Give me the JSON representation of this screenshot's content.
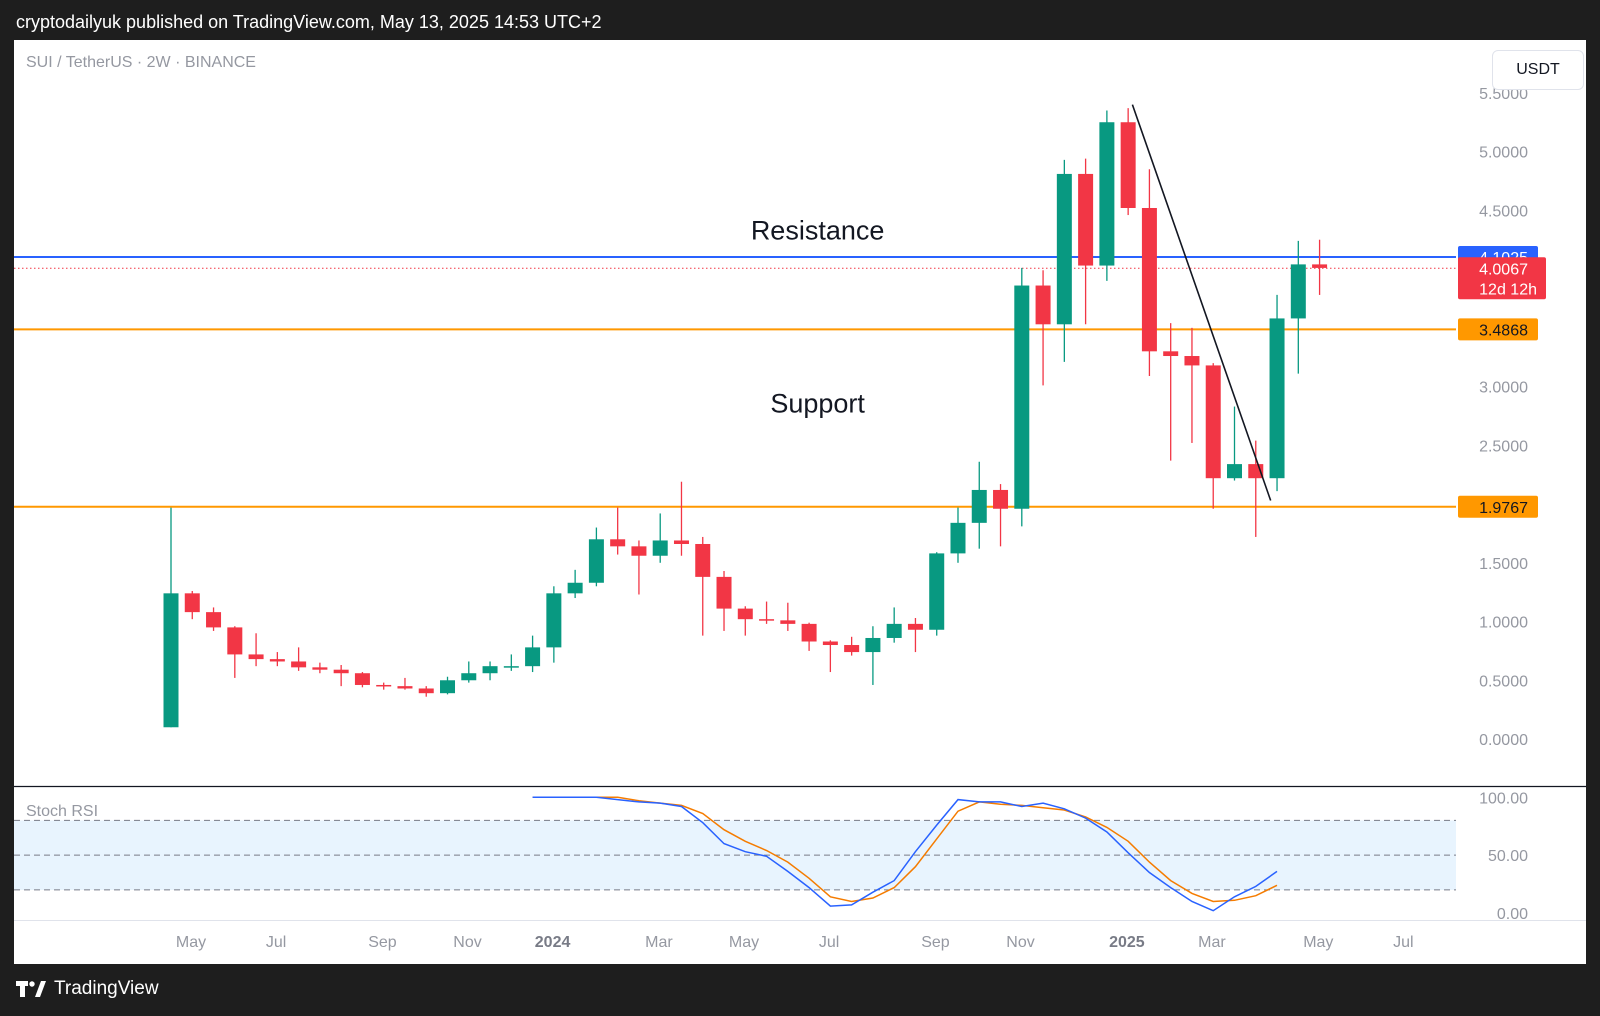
{
  "header": {
    "published": "cryptodailyuk published on TradingView.com, May 13, 2025 14:53 UTC+2"
  },
  "footer": {
    "brand": "TradingView"
  },
  "chart_data": [
    {
      "type": "candlestick",
      "title": "SUI / TetherUS · 2W · BINANCE",
      "currency_button": "USDT",
      "ylim": [
        -0.4,
        5.95
      ],
      "y_ticks": [
        "5.5000",
        "5.0000",
        "4.5000",
        "4.0000",
        "3.5000",
        "3.0000",
        "2.5000",
        "2.0000",
        "1.5000",
        "1.0000",
        "0.5000",
        "0.0000"
      ],
      "x_ticks": [
        {
          "label": "May",
          "i": 0
        },
        {
          "label": "Jul",
          "i": 4
        },
        {
          "label": "Sep",
          "i": 9
        },
        {
          "label": "Nov",
          "i": 13
        },
        {
          "label": "2024",
          "i": 17,
          "bold": true
        },
        {
          "label": "Mar",
          "i": 22
        },
        {
          "label": "May",
          "i": 26
        },
        {
          "label": "Jul",
          "i": 30
        },
        {
          "label": "Sep",
          "i": 35
        },
        {
          "label": "Nov",
          "i": 39
        },
        {
          "label": "2025",
          "i": 44,
          "bold": true
        },
        {
          "label": "Mar",
          "i": 48
        },
        {
          "label": "May",
          "i": 53
        },
        {
          "label": "Jul",
          "i": 57
        }
      ],
      "candles": [
        {
          "o": 0.1,
          "h": 1.97,
          "l": 0.1,
          "c": 1.24
        },
        {
          "o": 1.24,
          "h": 1.26,
          "l": 1.02,
          "c": 1.08
        },
        {
          "o": 1.08,
          "h": 1.12,
          "l": 0.92,
          "c": 0.95
        },
        {
          "o": 0.95,
          "h": 0.96,
          "l": 0.52,
          "c": 0.72
        },
        {
          "o": 0.72,
          "h": 0.9,
          "l": 0.62,
          "c": 0.68
        },
        {
          "o": 0.68,
          "h": 0.74,
          "l": 0.62,
          "c": 0.66
        },
        {
          "o": 0.66,
          "h": 0.78,
          "l": 0.58,
          "c": 0.61
        },
        {
          "o": 0.61,
          "h": 0.65,
          "l": 0.56,
          "c": 0.59
        },
        {
          "o": 0.59,
          "h": 0.63,
          "l": 0.45,
          "c": 0.56
        },
        {
          "o": 0.56,
          "h": 0.57,
          "l": 0.44,
          "c": 0.46
        },
        {
          "o": 0.46,
          "h": 0.48,
          "l": 0.42,
          "c": 0.45
        },
        {
          "o": 0.45,
          "h": 0.52,
          "l": 0.42,
          "c": 0.43
        },
        {
          "o": 0.43,
          "h": 0.45,
          "l": 0.36,
          "c": 0.39
        },
        {
          "o": 0.39,
          "h": 0.53,
          "l": 0.38,
          "c": 0.5
        },
        {
          "o": 0.5,
          "h": 0.66,
          "l": 0.48,
          "c": 0.56
        },
        {
          "o": 0.56,
          "h": 0.66,
          "l": 0.5,
          "c": 0.62
        },
        {
          "o": 0.62,
          "h": 0.72,
          "l": 0.58,
          "c": 0.62
        },
        {
          "o": 0.62,
          "h": 0.88,
          "l": 0.57,
          "c": 0.78
        },
        {
          "o": 0.78,
          "h": 1.3,
          "l": 0.65,
          "c": 1.24
        },
        {
          "o": 1.24,
          "h": 1.44,
          "l": 1.2,
          "c": 1.33
        },
        {
          "o": 1.33,
          "h": 1.8,
          "l": 1.3,
          "c": 1.7
        },
        {
          "o": 1.7,
          "h": 1.97,
          "l": 1.57,
          "c": 1.64
        },
        {
          "o": 1.64,
          "h": 1.69,
          "l": 1.23,
          "c": 1.56
        },
        {
          "o": 1.56,
          "h": 1.92,
          "l": 1.5,
          "c": 1.69
        },
        {
          "o": 1.69,
          "h": 2.19,
          "l": 1.56,
          "c": 1.66
        },
        {
          "o": 1.66,
          "h": 1.72,
          "l": 0.88,
          "c": 1.38
        },
        {
          "o": 1.38,
          "h": 1.43,
          "l": 0.92,
          "c": 1.11
        },
        {
          "o": 1.11,
          "h": 1.13,
          "l": 0.88,
          "c": 1.02
        },
        {
          "o": 1.02,
          "h": 1.17,
          "l": 0.98,
          "c": 1.01
        },
        {
          "o": 1.01,
          "h": 1.16,
          "l": 0.92,
          "c": 0.98
        },
        {
          "o": 0.98,
          "h": 0.99,
          "l": 0.75,
          "c": 0.83
        },
        {
          "o": 0.83,
          "h": 0.84,
          "l": 0.57,
          "c": 0.8
        },
        {
          "o": 0.8,
          "h": 0.87,
          "l": 0.71,
          "c": 0.74
        },
        {
          "o": 0.74,
          "h": 0.96,
          "l": 0.46,
          "c": 0.86
        },
        {
          "o": 0.86,
          "h": 1.12,
          "l": 0.82,
          "c": 0.98
        },
        {
          "o": 0.98,
          "h": 1.03,
          "l": 0.74,
          "c": 0.93
        },
        {
          "o": 0.93,
          "h": 1.59,
          "l": 0.88,
          "c": 1.58
        },
        {
          "o": 1.58,
          "h": 1.97,
          "l": 1.5,
          "c": 1.84
        },
        {
          "o": 1.84,
          "h": 2.36,
          "l": 1.62,
          "c": 2.12
        },
        {
          "o": 2.12,
          "h": 2.17,
          "l": 1.64,
          "c": 1.96
        },
        {
          "o": 1.96,
          "h": 4.01,
          "l": 1.81,
          "c": 3.86
        },
        {
          "o": 3.86,
          "h": 3.99,
          "l": 3.01,
          "c": 3.53
        },
        {
          "o": 3.53,
          "h": 4.93,
          "l": 3.21,
          "c": 4.81
        },
        {
          "o": 4.81,
          "h": 4.94,
          "l": 3.53,
          "c": 4.03
        },
        {
          "o": 4.03,
          "h": 5.35,
          "l": 3.9,
          "c": 5.25
        },
        {
          "o": 5.25,
          "h": 5.37,
          "l": 4.46,
          "c": 4.52
        },
        {
          "o": 4.52,
          "h": 4.85,
          "l": 3.09,
          "c": 3.3
        },
        {
          "o": 3.3,
          "h": 3.54,
          "l": 2.37,
          "c": 3.26
        },
        {
          "o": 3.26,
          "h": 3.5,
          "l": 2.52,
          "c": 3.18
        },
        {
          "o": 3.18,
          "h": 3.2,
          "l": 1.96,
          "c": 2.22
        },
        {
          "o": 2.22,
          "h": 2.83,
          "l": 2.2,
          "c": 2.34
        },
        {
          "o": 2.34,
          "h": 2.54,
          "l": 1.72,
          "c": 2.22
        },
        {
          "o": 2.22,
          "h": 3.78,
          "l": 2.11,
          "c": 3.58
        },
        {
          "o": 3.58,
          "h": 4.24,
          "l": 3.11,
          "c": 4.04
        },
        {
          "o": 4.04,
          "h": 4.25,
          "l": 3.78,
          "c": 4.01
        }
      ],
      "levels": [
        {
          "value": 4.1025,
          "label": "4.1025",
          "color": "#2962ff"
        },
        {
          "value": 3.4868,
          "label": "3.4868",
          "color": "#ff9800"
        },
        {
          "value": 1.9767,
          "label": "1.9767",
          "color": "#ff9800"
        }
      ],
      "last_price": {
        "value": 4.0067,
        "label": "4.0067",
        "countdown": "12d 12h",
        "color": "#f23645"
      },
      "trendline": {
        "from": {
          "i": 45.2,
          "v": 5.4
        },
        "to": {
          "i": 51.7,
          "v": 2.03
        }
      },
      "annotations": [
        {
          "text": "Resistance",
          "i": 30.4,
          "v": 4.25
        },
        {
          "text": "Support",
          "i": 30.4,
          "v": 2.78
        }
      ],
      "colors": {
        "up": "#089981",
        "down": "#f23645"
      }
    },
    {
      "type": "line",
      "title": "Stoch RSI",
      "ylim": [
        -6,
        108
      ],
      "y_ticks": [
        "100.00",
        "50.00",
        "0.00"
      ],
      "band": {
        "upper": 80,
        "middle": 50,
        "lower": 20
      },
      "series": [
        {
          "color": "#2962ff",
          "start_i": 17,
          "values": [
            100,
            100,
            100,
            100,
            98,
            96,
            95,
            92,
            78,
            60,
            53,
            49,
            36,
            22,
            6,
            7,
            18,
            28,
            53,
            76,
            98,
            96,
            96,
            92,
            95,
            90,
            82,
            70,
            52,
            35,
            22,
            10,
            2,
            14,
            23,
            36
          ]
        },
        {
          "color": "#f57c00",
          "start_i": 17,
          "values": [
            100,
            100,
            100,
            100,
            100,
            97,
            95,
            93,
            86,
            72,
            62,
            54,
            44,
            30,
            14,
            10,
            13,
            22,
            40,
            64,
            88,
            96,
            94,
            93,
            91,
            89,
            83,
            74,
            62,
            44,
            28,
            17,
            10,
            11,
            15,
            24
          ]
        }
      ]
    }
  ]
}
